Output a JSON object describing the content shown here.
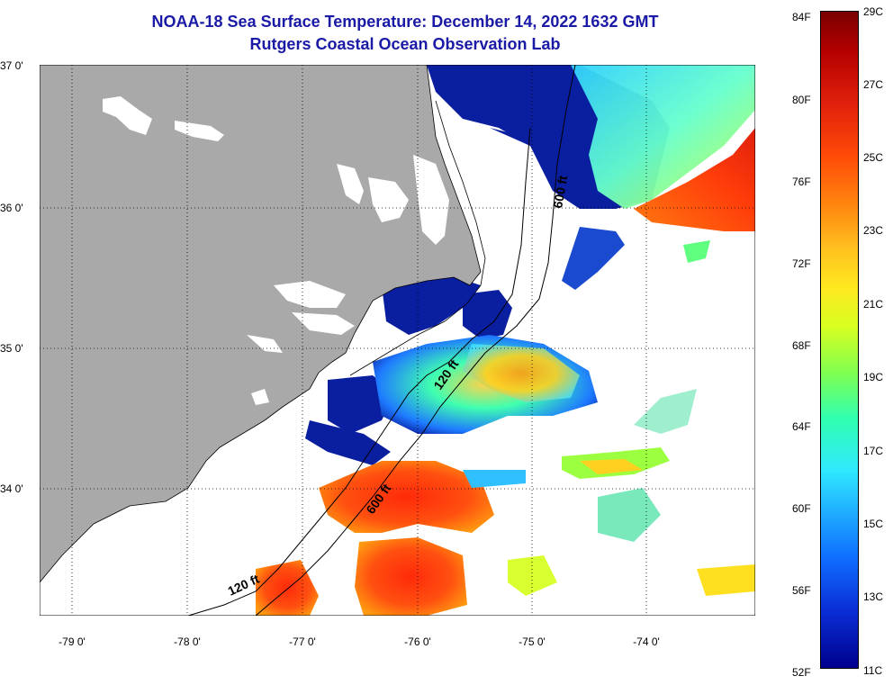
{
  "title_line1": "NOAA-18 Sea Surface Temperature:  December 14, 2022 1632 GMT",
  "title_line2": "Rutgers Coastal Ocean Observation Lab",
  "lat_labels": [
    "37 0'",
    "36 0'",
    "35 0'",
    "34 0'"
  ],
  "lon_labels": [
    "-79 0'",
    "-78 0'",
    "-77 0'",
    "-76 0'",
    "-75 0'",
    "-74 0'"
  ],
  "contour_labels": [
    "600 ft",
    "120 ft",
    "600 ft",
    "120 ft"
  ],
  "colorbar": {
    "fahrenheit": [
      "84F",
      "80F",
      "76F",
      "72F",
      "68F",
      "64F",
      "60F",
      "56F",
      "52F"
    ],
    "celsius": [
      "29C",
      "27C",
      "25C",
      "23C",
      "21C",
      "19C",
      "17C",
      "15C",
      "13C",
      "11C"
    ],
    "range_f": [
      52,
      84
    ],
    "range_c": [
      11,
      29
    ]
  },
  "colors": {
    "land": "#a9a9a9",
    "title": "#1a1aa6",
    "cold": "#000a8c",
    "warm": "#e0200c"
  }
}
